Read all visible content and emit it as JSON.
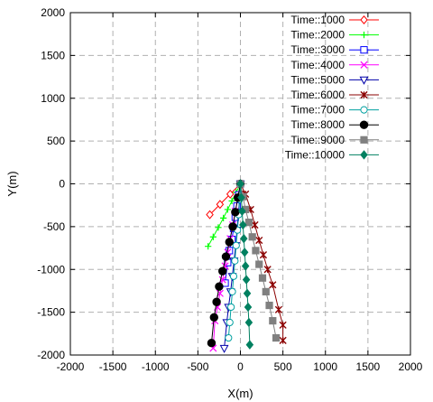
{
  "chart_data": {
    "type": "line",
    "title": "",
    "xlabel": "X(m)",
    "ylabel": "Y(m)",
    "xlim": [
      -2000,
      2000
    ],
    "ylim": [
      -2000,
      2000
    ],
    "xticks": [
      "-2000",
      "-1500",
      "-1000",
      "-500",
      "0",
      "500",
      "1000",
      "1500",
      "2000"
    ],
    "yticks": [
      "2000",
      "1500",
      "1000",
      "500",
      "0",
      "-500",
      "-1000",
      "-1500",
      "-2000"
    ],
    "grid": true,
    "legend_position": "top-right",
    "series": [
      {
        "name": "Time::1000",
        "color": "#ff0000",
        "marker": "diamond-open",
        "x": [
          0,
          -120,
          -240,
          -360
        ],
        "y": [
          0,
          -120,
          -240,
          -360
        ]
      },
      {
        "name": "Time::2000",
        "color": "#00ff00",
        "marker": "plus",
        "x": [
          0,
          -50,
          -100,
          -150,
          -200,
          -260,
          -320,
          -380
        ],
        "y": [
          0,
          -100,
          -200,
          -300,
          -400,
          -510,
          -620,
          -730
        ]
      },
      {
        "name": "Time::3000",
        "color": "#0000ff",
        "marker": "square-open",
        "x": [
          0,
          -20,
          -40,
          -60,
          -80,
          -100,
          -130,
          -150,
          -180
        ],
        "y": [
          0,
          -130,
          -260,
          -390,
          -520,
          -650,
          -780,
          -920,
          -1160
        ]
      },
      {
        "name": "Time::4000",
        "color": "#ff00ff",
        "marker": "x",
        "x": [
          0,
          -30,
          -60,
          -90,
          -120,
          -150,
          -180,
          -210,
          -240,
          -270,
          -300,
          -320
        ],
        "y": [
          0,
          -160,
          -320,
          -480,
          -640,
          -800,
          -960,
          -1120,
          -1280,
          -1440,
          -1600,
          -1920
        ]
      },
      {
        "name": "Time::5000",
        "color": "#0000aa",
        "marker": "triangle-down-open",
        "x": [
          0,
          -10,
          -25,
          -40,
          -55,
          -75,
          -95,
          -115,
          -140,
          -160,
          -190
        ],
        "y": [
          0,
          -180,
          -360,
          -540,
          -720,
          -900,
          -1080,
          -1260,
          -1440,
          -1620,
          -1920
        ]
      },
      {
        "name": "Time::6000",
        "color": "#8b0000",
        "marker": "star",
        "x": [
          0,
          60,
          120,
          170,
          220,
          270,
          320,
          380,
          450,
          500,
          500
        ],
        "y": [
          0,
          -120,
          -300,
          -480,
          -660,
          -830,
          -1000,
          -1180,
          -1470,
          -1650,
          -1830
        ]
      },
      {
        "name": "Time::7000",
        "color": "#00a0a0",
        "marker": "circle-open",
        "x": [
          0,
          -10,
          -20,
          -35,
          -50,
          -65,
          -80,
          -95,
          -110,
          -125,
          -140
        ],
        "y": [
          0,
          -180,
          -360,
          -540,
          -720,
          -900,
          -1080,
          -1260,
          -1440,
          -1620,
          -1800
        ]
      },
      {
        "name": "Time::8000",
        "color": "#000000",
        "marker": "circle-filled",
        "x": [
          0,
          -30,
          -60,
          -90,
          -130,
          -170,
          -210,
          -250,
          -280,
          -310,
          -340
        ],
        "y": [
          0,
          -160,
          -330,
          -500,
          -680,
          -850,
          -1020,
          -1200,
          -1380,
          -1560,
          -1860
        ]
      },
      {
        "name": "Time::9000",
        "color": "#808080",
        "marker": "square-filled",
        "x": [
          0,
          30,
          60,
          100,
          140,
          180,
          220,
          260,
          300,
          340,
          380,
          420
        ],
        "y": [
          0,
          -150,
          -300,
          -450,
          -620,
          -780,
          -940,
          -1100,
          -1260,
          -1420,
          -1600,
          -1800
        ]
      },
      {
        "name": "Time::10000",
        "color": "#008060",
        "marker": "diamond-filled",
        "x": [
          0,
          10,
          20,
          30,
          40,
          50,
          60,
          70,
          80,
          90,
          100,
          110
        ],
        "y": [
          0,
          -160,
          -320,
          -480,
          -640,
          -800,
          -960,
          -1120,
          -1280,
          -1440,
          -1620,
          -1880
        ]
      }
    ]
  }
}
